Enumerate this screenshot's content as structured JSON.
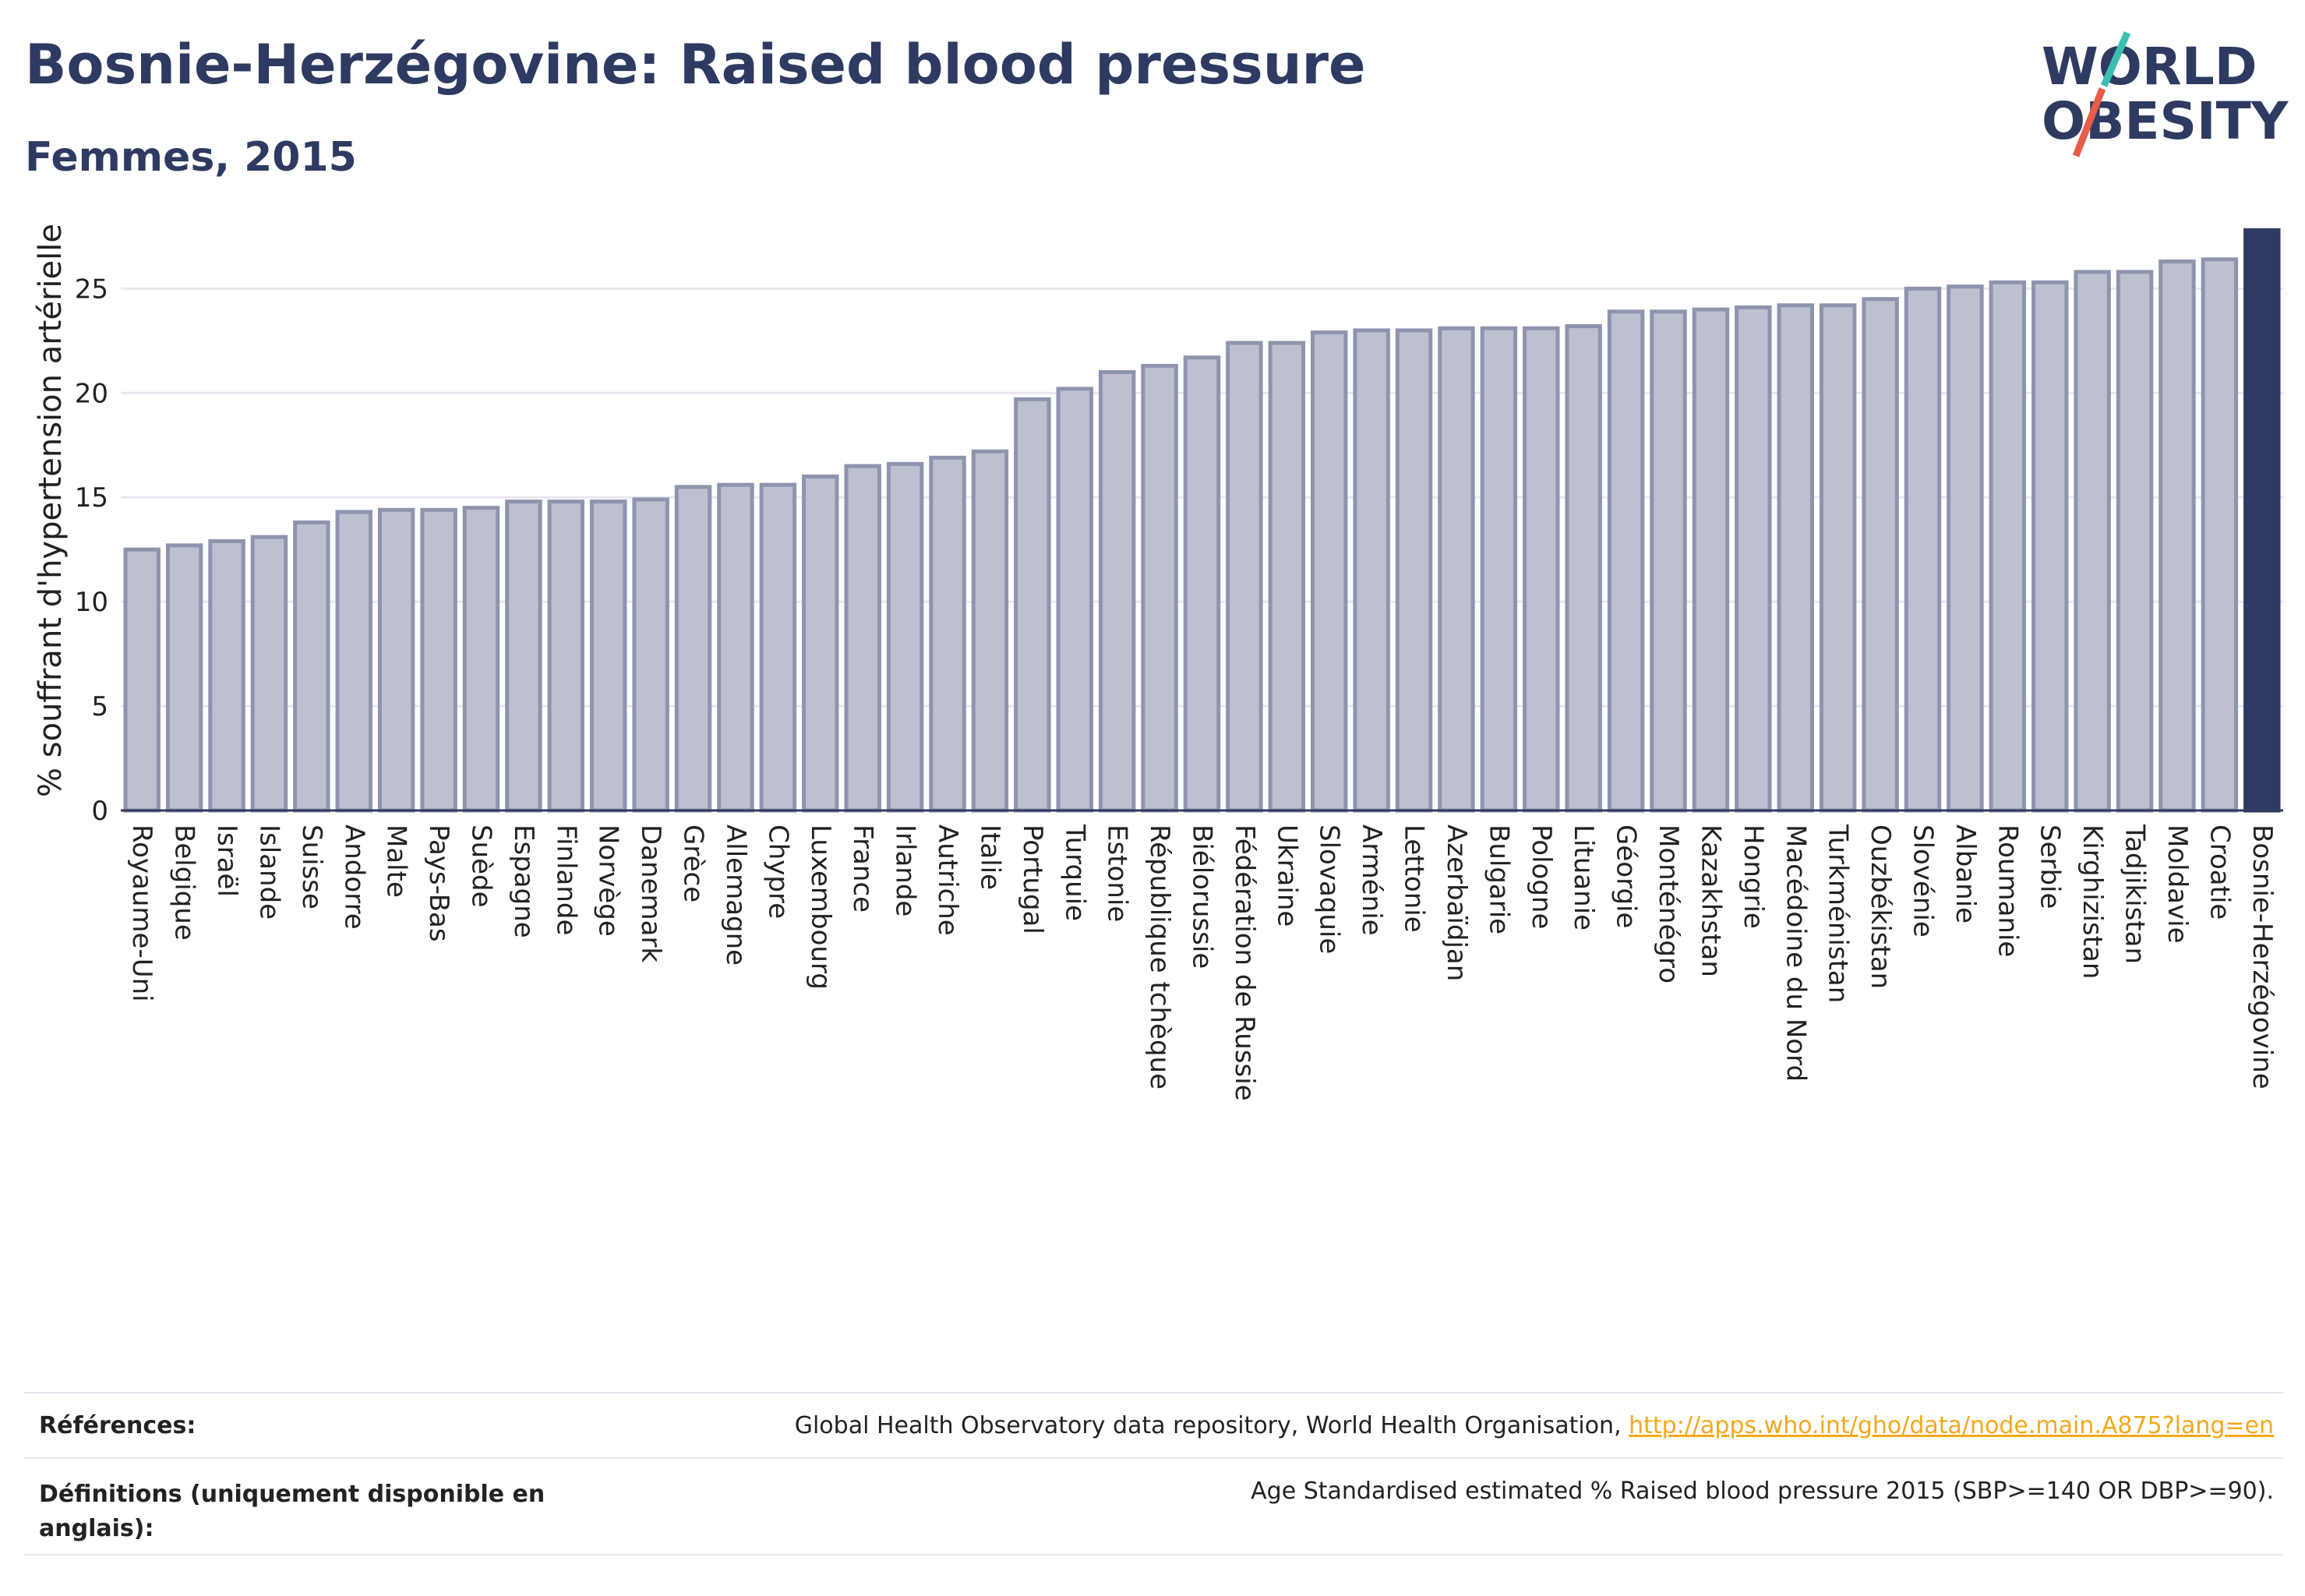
{
  "header": {
    "title": "Bosnie-Herzégovine: Raised blood pressure",
    "subtitle": "Femmes, 2015"
  },
  "logo": {
    "line1": "WORLD",
    "line2": "OBESITY"
  },
  "colors": {
    "bar_fill": "#bcc0cf",
    "bar_stroke": "#8e94ad",
    "highlight": "#2e3a61",
    "title": "#2e3a61",
    "grid": "#e6e8ef",
    "link": "#f4a81d",
    "logo_teal": "#3bbfb2",
    "logo_red": "#e85c4a"
  },
  "chart_data": {
    "type": "bar",
    "ylabel": "% souffrant d'hypertension artérielle",
    "xlabel": "",
    "ylim": [
      0,
      28
    ],
    "yticks": [
      0,
      5,
      10,
      15,
      20,
      25
    ],
    "grid": true,
    "highlight_category": "Bosnie-Herzégovine",
    "categories": [
      "Royaume-Uni",
      "Belgique",
      "Israël",
      "Islande",
      "Suisse",
      "Andorre",
      "Malte",
      "Pays-Bas",
      "Suède",
      "Espagne",
      "Finlande",
      "Norvège",
      "Danemark",
      "Grèce",
      "Allemagne",
      "Chypre",
      "Luxembourg",
      "France",
      "Irlande",
      "Autriche",
      "Italie",
      "Portugal",
      "Turquie",
      "Estonie",
      "République tchèque",
      "Biélorussie",
      "Fédération de Russie",
      "Ukraine",
      "Slovaquie",
      "Arménie",
      "Lettonie",
      "Azerbaïdjan",
      "Bulgarie",
      "Pologne",
      "Lituanie",
      "Géorgie",
      "Monténégro",
      "Kazakhstan",
      "Hongrie",
      "Macédoine du Nord",
      "Turkménistan",
      "Ouzbékistan",
      "Slovénie",
      "Albanie",
      "Roumanie",
      "Serbie",
      "Kirghizistan",
      "Tadjikistan",
      "Moldavie",
      "Croatie",
      "Bosnie-Herzégovine"
    ],
    "values": [
      12.5,
      12.7,
      12.9,
      13.1,
      13.8,
      14.3,
      14.4,
      14.4,
      14.5,
      14.8,
      14.8,
      14.8,
      14.9,
      15.5,
      15.6,
      15.6,
      16.0,
      16.5,
      16.6,
      16.9,
      17.2,
      19.7,
      20.2,
      21.0,
      21.3,
      21.7,
      22.4,
      22.4,
      22.9,
      23.0,
      23.0,
      23.1,
      23.1,
      23.1,
      23.2,
      23.9,
      23.9,
      24.0,
      24.1,
      24.2,
      24.2,
      24.5,
      25.0,
      25.1,
      25.3,
      25.3,
      25.8,
      25.8,
      26.3,
      26.4,
      27.8
    ]
  },
  "footer": {
    "references_label": "Références:",
    "references_text": "Global Health Observatory data repository, World Health Organisation, ",
    "references_link": "http://apps.who.int/gho/data/node.main.A875?lang=en",
    "definitions_label_1": "Définitions (uniquement disponible en",
    "definitions_label_2": "anglais):",
    "definitions_text": "Age Standardised estimated % Raised blood pressure 2015 (SBP>=140 OR DBP>=90)."
  }
}
